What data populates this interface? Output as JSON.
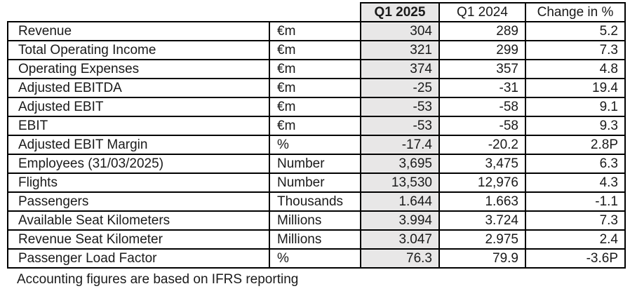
{
  "table": {
    "header": {
      "q1_2025": "Q1 2025",
      "q1_2024": "Q1 2024",
      "change": "Change in %"
    },
    "rows": [
      {
        "label": "Revenue",
        "unit": "€m",
        "q1_2025": "304",
        "q1_2024": "289",
        "change": "5.2"
      },
      {
        "label": "Total Operating Income",
        "unit": "€m",
        "q1_2025": "321",
        "q1_2024": "299",
        "change": "7.3"
      },
      {
        "label": "Operating Expenses",
        "unit": "€m",
        "q1_2025": "374",
        "q1_2024": "357",
        "change": "4.8"
      },
      {
        "label": "Adjusted EBITDA",
        "unit": "€m",
        "q1_2025": "-25",
        "q1_2024": "-31",
        "change": "19.4"
      },
      {
        "label": "Adjusted EBIT",
        "unit": "€m",
        "q1_2025": "-53",
        "q1_2024": "-58",
        "change": "9.1"
      },
      {
        "label": "EBIT",
        "unit": "€m",
        "q1_2025": "-53",
        "q1_2024": "-58",
        "change": "9.3"
      },
      {
        "label": "Adjusted EBIT Margin",
        "unit": "%",
        "q1_2025": "-17.4",
        "q1_2024": "-20.2",
        "change": "2.8P"
      },
      {
        "label": "Employees (31/03/2025)",
        "unit": "Number",
        "q1_2025": "3,695",
        "q1_2024": "3,475",
        "change": "6.3"
      },
      {
        "label": "Flights",
        "unit": "Number",
        "q1_2025": "13,530",
        "q1_2024": "12,976",
        "change": "4.3"
      },
      {
        "label": "Passengers",
        "unit": "Thousands",
        "q1_2025": "1.644",
        "q1_2024": "1.663",
        "change": "-1.1"
      },
      {
        "label": "Available Seat Kilometers",
        "unit": "Millions",
        "q1_2025": "3.994",
        "q1_2024": "3.724",
        "change": "7.3"
      },
      {
        "label": "Revenue Seat Kilometer",
        "unit": "Millions",
        "q1_2025": "3.047",
        "q1_2024": "2.975",
        "change": "2.4"
      },
      {
        "label": "Passenger Load Factor",
        "unit": "%",
        "q1_2025": "76.3",
        "q1_2024": "79.9",
        "change": "-3.6P"
      }
    ]
  },
  "footnote": "Accounting figures are based on IFRS reporting",
  "colors": {
    "highlight_column_bg": "#e8e7e7",
    "border": "#000000",
    "text": "#1a1a1a"
  }
}
